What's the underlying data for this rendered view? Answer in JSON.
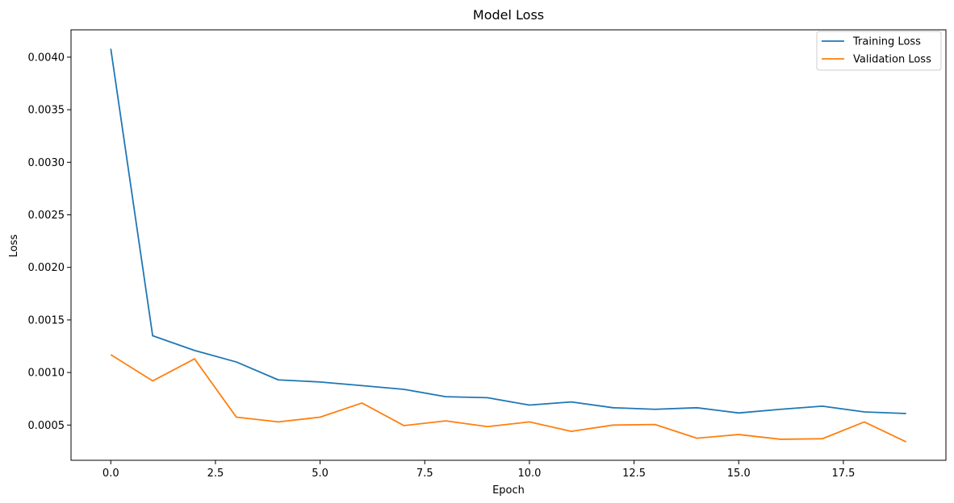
{
  "chart_data": {
    "type": "line",
    "title": "Model Loss",
    "xlabel": "Epoch",
    "ylabel": "Loss",
    "x": [
      0,
      1,
      2,
      3,
      4,
      5,
      6,
      7,
      8,
      9,
      10,
      11,
      12,
      13,
      14,
      15,
      16,
      17,
      18,
      19
    ],
    "xlim": [
      -0.95,
      19.95
    ],
    "ylim": [
      0.000165,
      0.00426
    ],
    "xticks": [
      0.0,
      2.5,
      5.0,
      7.5,
      10.0,
      12.5,
      15.0,
      17.5
    ],
    "xtick_labels": [
      "0.0",
      "2.5",
      "5.0",
      "7.5",
      "10.0",
      "12.5",
      "15.0",
      "17.5"
    ],
    "yticks": [
      0.0005,
      0.001,
      0.0015,
      0.002,
      0.0025,
      0.003,
      0.0035,
      0.004
    ],
    "ytick_labels": [
      "0.0005",
      "0.0010",
      "0.0015",
      "0.0020",
      "0.0025",
      "0.0030",
      "0.0035",
      "0.0040"
    ],
    "grid": false,
    "legend_position": "top-right",
    "series": [
      {
        "name": "Training Loss",
        "color": "#1f77b4",
        "values": [
          0.00408,
          0.00135,
          0.00121,
          0.0011,
          0.00093,
          0.00091,
          0.000875,
          0.00084,
          0.00077,
          0.00076,
          0.00069,
          0.00072,
          0.000665,
          0.00065,
          0.000665,
          0.000615,
          0.00065,
          0.00068,
          0.000625,
          0.00061
        ]
      },
      {
        "name": "Validation Loss",
        "color": "#ff7f0e",
        "values": [
          0.00117,
          0.00092,
          0.00113,
          0.000575,
          0.00053,
          0.000575,
          0.00071,
          0.000495,
          0.00054,
          0.000485,
          0.00053,
          0.00044,
          0.0005,
          0.000505,
          0.000375,
          0.00041,
          0.000365,
          0.00037,
          0.00053,
          0.00034
        ]
      }
    ]
  }
}
